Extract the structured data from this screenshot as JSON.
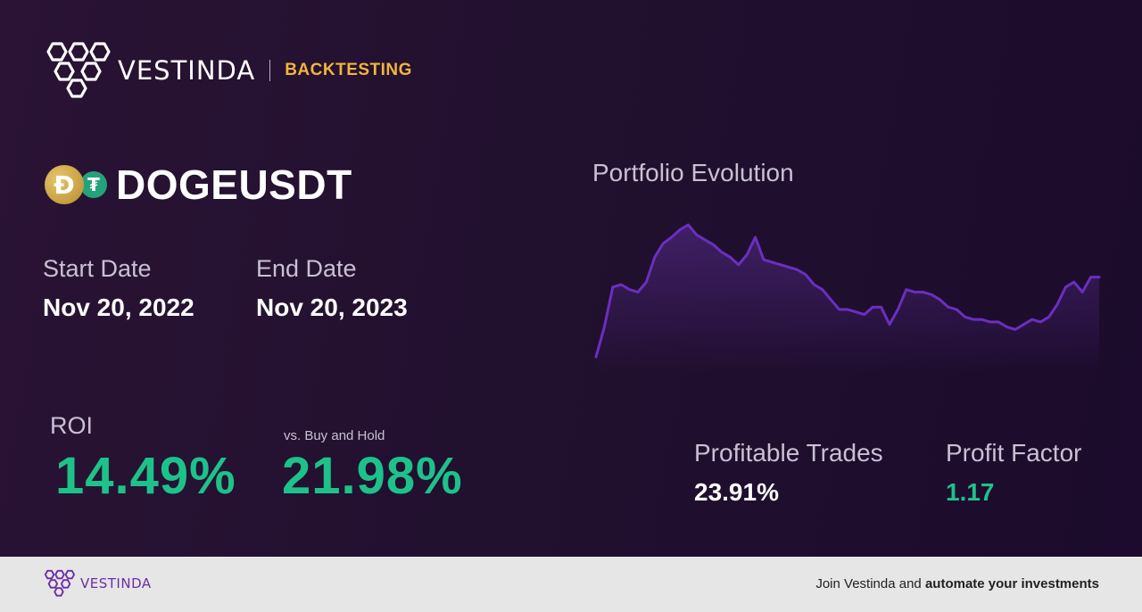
{
  "brand": {
    "name": "VESTINDA",
    "tag": "BACKTESTING"
  },
  "pair": {
    "symbol": "DOGEUSDT",
    "coin_a_glyph": "Ð",
    "coin_b_glyph": "₮",
    "coin_a_icon": "doge-coin-icon",
    "coin_b_icon": "tether-coin-icon"
  },
  "dates": {
    "start_label": "Start Date",
    "start_value": "Nov 20, 2022",
    "end_label": "End Date",
    "end_value": "Nov 20, 2023"
  },
  "roi": {
    "label": "ROI",
    "value": "14.49%"
  },
  "buy_hold": {
    "label": "vs. Buy and Hold",
    "value": "21.98%"
  },
  "stats": {
    "profitable_label": "Profitable Trades",
    "profitable_value": "23.91%",
    "profit_factor_label": "Profit Factor",
    "profit_factor_value": "1.17"
  },
  "footer": {
    "brand": "VESTINDA",
    "cta_prefix": "Join Vestinda and ",
    "cta_bold": "automate your investments"
  },
  "colors": {
    "accent": "#f0b63a",
    "positive": "#1dc28a",
    "line": "#6a2fc0"
  },
  "chart_data": {
    "type": "line",
    "title": "Portfolio Evolution",
    "x": [
      0,
      1,
      2,
      3,
      4,
      5,
      6,
      7,
      8,
      9,
      10,
      11,
      12,
      13,
      14,
      15,
      16,
      17,
      18,
      19,
      20,
      21,
      22,
      23,
      24,
      25,
      26,
      27,
      28,
      29,
      30,
      31,
      32,
      33,
      34,
      35,
      36,
      37,
      38,
      39,
      40,
      41,
      42,
      43,
      44,
      45,
      46,
      47,
      48,
      49,
      50,
      51,
      52,
      53,
      54,
      55,
      56,
      57,
      58,
      59,
      60
    ],
    "values": [
      4,
      28,
      60,
      62,
      58,
      56,
      64,
      84,
      95,
      100,
      106,
      110,
      102,
      98,
      94,
      88,
      84,
      78,
      86,
      100,
      82,
      80,
      78,
      76,
      74,
      70,
      62,
      58,
      50,
      42,
      42,
      40,
      38,
      44,
      44,
      30,
      42,
      58,
      56,
      56,
      54,
      50,
      44,
      42,
      36,
      34,
      34,
      32,
      32,
      28,
      26,
      30,
      34,
      32,
      36,
      46,
      60,
      64,
      56,
      68,
      68
    ],
    "xlabel": "",
    "ylabel": "",
    "grid": false
  }
}
